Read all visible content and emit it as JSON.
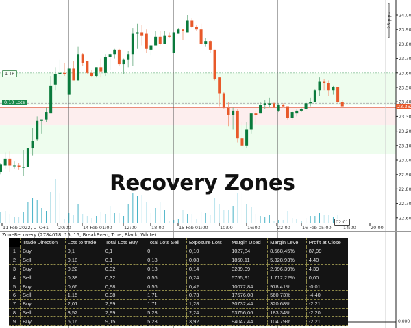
{
  "chart_data": {
    "type": "candlestick",
    "title": "Recovery Zones",
    "ylim": [
      22.56,
      24.1
    ],
    "y_ticks": [
      "24.00",
      "23.90",
      "23.80",
      "23.70",
      "23.60",
      "23.50",
      "23.40",
      "23.30",
      "23.20",
      "23.10",
      "23.00",
      "22.90",
      "22.80",
      "22.70",
      "22.60"
    ],
    "x_ticks": [
      "11 Feb 2022, UTC+1",
      "20:00",
      "14 Feb 01:00",
      "12:00",
      "18:00",
      "15 Feb 01:00",
      "10:00",
      "16:00",
      "22:00",
      "16 Feb 05:00",
      "14:00",
      "20:00"
    ],
    "current_price": "23.362",
    "crosshair_time": "02 01",
    "range_label": "25 pips",
    "grid": false,
    "colors": {
      "bull": "#0a7a3c",
      "bear": "#e8592a",
      "volume_bull": "#49b3c7",
      "volume_bear": "#b9e4ee",
      "buy_zone": "#eefdee",
      "sell_zone": "#fdeeee",
      "price_line": "#e06b4e"
    },
    "zones": {
      "tp_price": 23.6,
      "buy_zone": [
        23.38,
        23.6
      ],
      "sell_zone": [
        23.24,
        23.36
      ],
      "lower_zone": [
        23.04,
        23.24
      ],
      "entry_prices": [
        23.39,
        23.38
      ]
    },
    "trade_labels": {
      "tp": "1 TP",
      "lots": "0.10 Lots"
    },
    "ohlc": [
      [
        22.92,
        22.98,
        22.9,
        22.97
      ],
      [
        22.96,
        23.05,
        22.94,
        23.01
      ],
      [
        23.01,
        23.06,
        22.92,
        22.96
      ],
      [
        22.96,
        22.99,
        22.94,
        22.96
      ],
      [
        22.96,
        22.98,
        22.93,
        22.95
      ],
      [
        22.95,
        23.07,
        22.89,
        22.95
      ],
      [
        22.95,
        23.08,
        22.95,
        23.08
      ],
      [
        23.08,
        23.22,
        23.03,
        23.13
      ],
      [
        23.14,
        23.3,
        23.13,
        23.27
      ],
      [
        23.27,
        23.28,
        23.18,
        23.28
      ],
      [
        23.28,
        23.36,
        23.26,
        23.33
      ],
      [
        23.32,
        23.58,
        23.32,
        23.51
      ],
      [
        23.52,
        23.64,
        23.48,
        23.59
      ],
      [
        23.59,
        23.69,
        23.57,
        23.6
      ],
      [
        23.6,
        23.67,
        23.58,
        23.59
      ],
      [
        23.45,
        23.63,
        23.45,
        23.63
      ],
      [
        23.63,
        23.68,
        23.55,
        23.55
      ],
      [
        23.55,
        23.78,
        23.55,
        23.73
      ],
      [
        23.73,
        23.74,
        23.65,
        23.67
      ],
      [
        23.68,
        23.68,
        23.59,
        23.6
      ],
      [
        23.6,
        23.62,
        23.57,
        23.58
      ],
      [
        23.58,
        23.64,
        23.57,
        23.64
      ],
      [
        23.64,
        23.7,
        23.57,
        23.61
      ],
      [
        23.6,
        23.73,
        23.58,
        23.71
      ],
      [
        23.71,
        23.74,
        23.62,
        23.73
      ],
      [
        23.73,
        23.77,
        23.7,
        23.76
      ],
      [
        23.76,
        23.77,
        23.65,
        23.66
      ],
      [
        23.66,
        23.7,
        23.59,
        23.69
      ],
      [
        23.69,
        23.75,
        23.64,
        23.73
      ],
      [
        23.73,
        23.91,
        23.65,
        23.87
      ],
      [
        23.87,
        23.94,
        23.77,
        23.88
      ],
      [
        23.88,
        23.93,
        23.79,
        23.86
      ],
      [
        23.87,
        23.9,
        23.74,
        23.77
      ],
      [
        23.76,
        23.79,
        23.72,
        23.79
      ],
      [
        23.79,
        23.89,
        23.79,
        23.85
      ],
      [
        23.85,
        23.89,
        23.79,
        23.8
      ],
      [
        23.8,
        23.89,
        23.8,
        23.86
      ],
      [
        23.86,
        23.88,
        23.84,
        23.85
      ],
      [
        23.74,
        23.88,
        23.74,
        23.88
      ],
      [
        23.87,
        23.91,
        23.87,
        23.9
      ],
      [
        23.9,
        23.9,
        23.83,
        23.89
      ],
      [
        23.88,
        24.0,
        23.88,
        23.96
      ],
      [
        23.96,
        23.98,
        23.91,
        23.92
      ],
      [
        23.92,
        23.93,
        23.89,
        23.9
      ],
      [
        23.9,
        23.94,
        23.79,
        23.8
      ],
      [
        23.8,
        23.84,
        23.78,
        23.82
      ],
      [
        23.82,
        23.83,
        23.74,
        23.76
      ],
      [
        23.76,
        23.76,
        23.55,
        23.56
      ],
      [
        23.57,
        23.57,
        23.37,
        23.46
      ],
      [
        23.46,
        23.47,
        23.35,
        23.36
      ],
      [
        23.36,
        23.4,
        23.23,
        23.31
      ],
      [
        23.31,
        23.36,
        23.21,
        23.34
      ],
      [
        23.34,
        23.35,
        23.12,
        23.15
      ],
      [
        23.15,
        23.26,
        23.1,
        23.1
      ],
      [
        23.1,
        23.26,
        23.08,
        23.21
      ],
      [
        23.21,
        23.32,
        23.18,
        23.32
      ],
      [
        23.32,
        23.34,
        23.25,
        23.31
      ],
      [
        23.32,
        23.4,
        23.32,
        23.38
      ],
      [
        23.38,
        23.41,
        23.35,
        23.39
      ],
      [
        23.38,
        23.43,
        23.36,
        23.39
      ],
      [
        23.39,
        23.4,
        23.36,
        23.36
      ],
      [
        23.34,
        23.39,
        23.33,
        23.38
      ],
      [
        23.38,
        23.39,
        23.36,
        23.37
      ],
      [
        23.37,
        23.37,
        23.28,
        23.29
      ],
      [
        23.29,
        23.34,
        23.28,
        23.33
      ],
      [
        23.32,
        23.35,
        23.3,
        23.34
      ],
      [
        23.34,
        23.36,
        23.33,
        23.35
      ],
      [
        23.35,
        23.41,
        23.34,
        23.39
      ],
      [
        23.39,
        23.43,
        23.37,
        23.4
      ],
      [
        23.4,
        23.49,
        23.4,
        23.48
      ],
      [
        23.48,
        23.57,
        23.44,
        23.54
      ],
      [
        23.54,
        23.56,
        23.48,
        23.53
      ],
      [
        23.53,
        23.55,
        23.44,
        23.48
      ],
      [
        23.48,
        23.51,
        23.45,
        23.5
      ],
      [
        23.5,
        23.5,
        23.39,
        23.4
      ],
      [
        23.4,
        23.41,
        23.37,
        23.37
      ]
    ],
    "volume": [
      16,
      17,
      13,
      9,
      9,
      16,
      30,
      36,
      34,
      21,
      17,
      45,
      64,
      43,
      6,
      14,
      11,
      27,
      13,
      10,
      7,
      10,
      16,
      13,
      24,
      15,
      15,
      10,
      27,
      43,
      39,
      41,
      31,
      15,
      21,
      31,
      18,
      3,
      4,
      5,
      18,
      13,
      13,
      6,
      16,
      15,
      12,
      36,
      28,
      19,
      18,
      24,
      43,
      43,
      28,
      23,
      13,
      10,
      8,
      11,
      3,
      4,
      4,
      17,
      7,
      5,
      3,
      7,
      10,
      10,
      15,
      12,
      12,
      8,
      12,
      6
    ]
  },
  "indicator": {
    "label": "ZoneRecovery (2784018, 15, 15, BreakEven, True, Black, White)",
    "zero_label": "0.000",
    "columns": [
      "",
      "Trade Direction",
      "Lots to trade",
      "Total Lots Buy",
      "Total Lots Sell",
      "Exposure Lots",
      "Margin Used",
      "Margin Level",
      "Profit at Close"
    ],
    "rows": [
      [
        "1",
        "Buy",
        "0,1",
        "0,1",
        "0",
        "0,10",
        "1027,84",
        "8.568,45%",
        "87,99"
      ],
      [
        "2",
        "Sell",
        "0,18",
        "0,1",
        "0,18",
        "0,08",
        "1850,11",
        "5.328,93%",
        "4,40"
      ],
      [
        "3",
        "Buy",
        "0,22",
        "0,32",
        "0,18",
        "0,14",
        "3289,09",
        "2.996,39%",
        "4,39"
      ],
      [
        "4",
        "Sell",
        "0,38",
        "0,32",
        "0,56",
        "0,24",
        "5755,91",
        "1.712,22%",
        "0,00"
      ],
      [
        "5",
        "Buy",
        "0,66",
        "0,98",
        "0,56",
        "0,42",
        "10072,84",
        "978,41%",
        "-0,01"
      ],
      [
        "6",
        "Sell",
        "1,15",
        "0,98",
        "1,71",
        "0,73",
        "17576,08",
        "560,73%",
        "-4,40"
      ],
      [
        "7",
        "Buy",
        "2,01",
        "2,99",
        "1,71",
        "1,28",
        "30732,44",
        "320,68%",
        "-2,21"
      ],
      [
        "8",
        "Sell",
        "3,52",
        "2,99",
        "5,23",
        "2,24",
        "53756,06",
        "183,34%",
        "-2,20"
      ],
      [
        "9",
        "Buy",
        "6,16",
        "9,15",
        "5,23",
        "3,92",
        "94047,44",
        "104,79%",
        "-2,21"
      ]
    ]
  }
}
